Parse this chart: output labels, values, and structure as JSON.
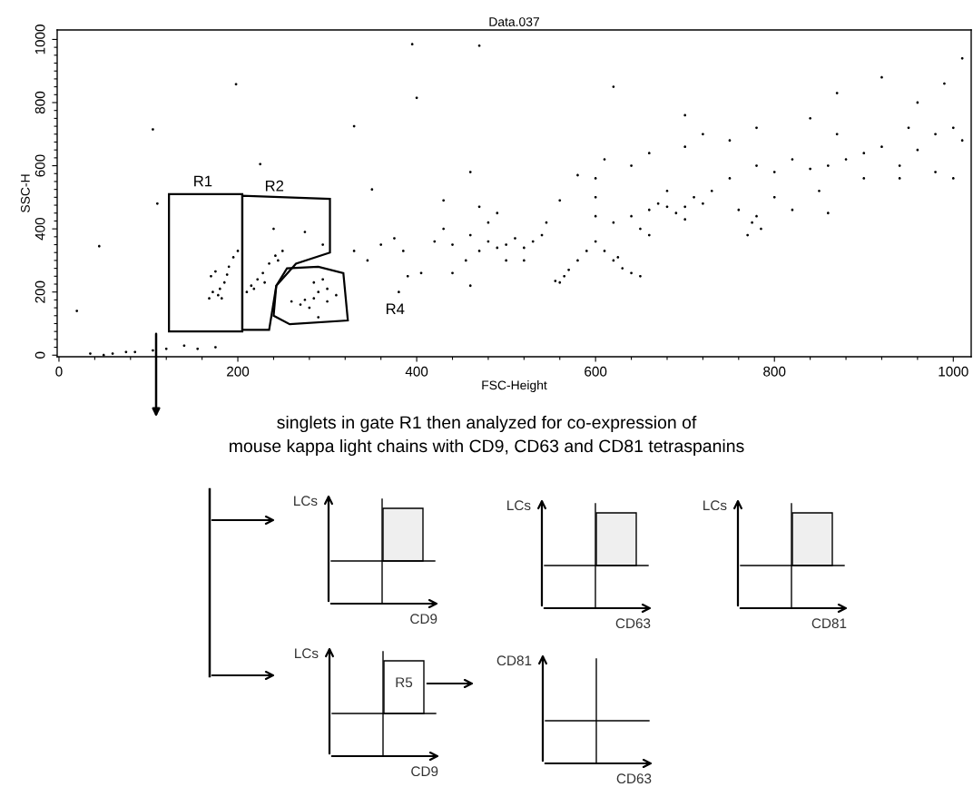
{
  "chart_data": {
    "type": "scatter",
    "title": "Data.037",
    "xlabel": "FSC-Height",
    "ylabel": "SSC-H",
    "color": "#000000",
    "marker": "circle",
    "grid": false,
    "legend": false,
    "xlim": [
      -2,
      1020
    ],
    "ylim": [
      -5,
      1030
    ],
    "xticks": [
      0,
      {
        "value": 40,
        "label": null
      },
      {
        "value": 80,
        "label": null
      },
      {
        "value": 120,
        "label": null
      },
      {
        "value": 160,
        "label": null
      },
      200,
      {
        "value": 240,
        "label": null
      },
      {
        "value": 280,
        "label": null
      },
      {
        "value": 320,
        "label": null
      },
      {
        "value": 360,
        "label": null
      },
      400,
      {
        "value": 440,
        "label": null
      },
      {
        "value": 480,
        "label": null
      },
      {
        "value": 520,
        "label": null
      },
      {
        "value": 560,
        "label": null
      },
      600,
      {
        "value": 640,
        "label": null
      },
      {
        "value": 680,
        "label": null
      },
      {
        "value": 720,
        "label": null
      },
      {
        "value": 760,
        "label": null
      },
      800,
      {
        "value": 840,
        "label": null
      },
      {
        "value": 880,
        "label": null
      },
      {
        "value": 920,
        "label": null
      },
      {
        "value": 960,
        "label": null
      },
      1000
    ],
    "yticks": [
      0,
      {
        "value": 25,
        "label": null
      },
      {
        "value": 50,
        "label": null
      },
      {
        "value": 75,
        "label": null
      },
      {
        "value": 100,
        "label": null
      },
      {
        "value": 125,
        "label": null
      },
      {
        "value": 150,
        "label": null
      },
      {
        "value": 175,
        "label": null
      },
      200,
      {
        "value": 225,
        "label": null
      },
      {
        "value": 250,
        "label": null
      },
      {
        "value": 275,
        "label": null
      },
      {
        "value": 300,
        "label": null
      },
      {
        "value": 325,
        "label": null
      },
      {
        "value": 350,
        "label": null
      },
      {
        "value": 375,
        "label": null
      },
      400,
      {
        "value": 425,
        "label": null
      },
      {
        "value": 450,
        "label": null
      },
      {
        "value": 475,
        "label": null
      },
      {
        "value": 500,
        "label": null
      },
      {
        "value": 525,
        "label": null
      },
      {
        "value": 550,
        "label": null
      },
      {
        "value": 575,
        "label": null
      },
      600,
      {
        "value": 625,
        "label": null
      },
      {
        "value": 650,
        "label": null
      },
      {
        "value": 675,
        "label": null
      },
      {
        "value": 700,
        "label": null
      },
      {
        "value": 725,
        "label": null
      },
      {
        "value": 750,
        "label": null
      },
      {
        "value": 775,
        "label": null
      },
      800,
      {
        "value": 825,
        "label": null
      },
      {
        "value": 850,
        "label": null
      },
      {
        "value": 875,
        "label": null
      },
      {
        "value": 900,
        "label": null
      },
      {
        "value": 925,
        "label": null
      },
      {
        "value": 950,
        "label": null
      },
      {
        "value": 975,
        "label": null
      },
      1000
    ],
    "x": [
      35,
      50,
      60,
      75,
      85,
      105,
      120,
      140,
      155,
      175,
      20,
      45,
      110,
      105,
      198,
      225,
      330,
      395,
      400,
      470,
      350,
      460,
      170,
      172,
      178,
      180,
      185,
      188,
      190,
      175,
      182,
      195,
      200,
      168,
      210,
      215,
      222,
      228,
      235,
      242,
      250,
      218,
      230,
      245,
      240,
      275,
      295,
      260,
      270,
      280,
      285,
      290,
      285,
      295,
      300,
      275,
      300,
      310,
      290,
      330,
      345,
      360,
      375,
      385,
      380,
      390,
      420,
      440,
      460,
      470,
      480,
      490,
      500,
      510,
      520,
      530,
      540,
      455,
      430,
      480,
      500,
      520,
      440,
      460,
      405,
      545,
      490,
      470,
      430,
      555,
      560,
      565,
      570,
      580,
      590,
      600,
      610,
      620,
      630,
      640,
      650,
      625,
      640,
      660,
      670,
      680,
      690,
      700,
      710,
      720,
      700,
      650,
      680,
      620,
      600,
      730,
      660,
      600,
      560,
      580,
      610,
      640,
      770,
      775,
      780,
      760,
      785,
      750,
      780,
      800,
      820,
      840,
      860,
      880,
      900,
      920,
      940,
      960,
      980,
      1000,
      1010,
      800,
      850,
      900,
      940,
      980,
      1000,
      820,
      860,
      950,
      960,
      990,
      1010,
      920,
      870,
      840,
      780,
      750,
      700,
      720,
      660,
      870,
      700,
      620,
      600
    ],
    "values": [
      5,
      0,
      5,
      10,
      10,
      15,
      20,
      30,
      20,
      25,
      140,
      345,
      480,
      715,
      858,
      605,
      725,
      985,
      815,
      980,
      525,
      580,
      250,
      200,
      190,
      210,
      230,
      255,
      280,
      265,
      180,
      310,
      330,
      180,
      200,
      220,
      240,
      260,
      290,
      315,
      330,
      210,
      230,
      300,
      400,
      390,
      350,
      170,
      160,
      150,
      180,
      200,
      230,
      240,
      210,
      175,
      170,
      190,
      120,
      330,
      300,
      350,
      370,
      330,
      200,
      250,
      360,
      350,
      380,
      330,
      360,
      340,
      350,
      370,
      340,
      360,
      380,
      300,
      400,
      420,
      300,
      300,
      260,
      220,
      260,
      420,
      450,
      470,
      490,
      235,
      230,
      250,
      270,
      300,
      330,
      360,
      330,
      300,
      275,
      260,
      250,
      310,
      440,
      460,
      480,
      470,
      450,
      470,
      500,
      480,
      430,
      400,
      520,
      420,
      440,
      520,
      380,
      500,
      490,
      570,
      620,
      600,
      380,
      420,
      440,
      460,
      400,
      560,
      600,
      580,
      620,
      590,
      600,
      620,
      640,
      660,
      600,
      650,
      700,
      720,
      680,
      500,
      520,
      560,
      560,
      580,
      560,
      460,
      450,
      720,
      800,
      860,
      940,
      880,
      830,
      750,
      720,
      680,
      660,
      700,
      640,
      700,
      760,
      850,
      560
    ],
    "annotations": [
      "singlets in gate R1 then analyzed for co-expression of",
      "mouse kappa light chains with CD9, CD63 and CD81 tetraspanins",
      "LCs",
      "CD9",
      "LCs",
      "CD63",
      "LCs",
      "CD81",
      "LCs",
      "CD9",
      "CD81",
      "CD63",
      "R5",
      "R1",
      "R2",
      "R4"
    ]
  }
}
